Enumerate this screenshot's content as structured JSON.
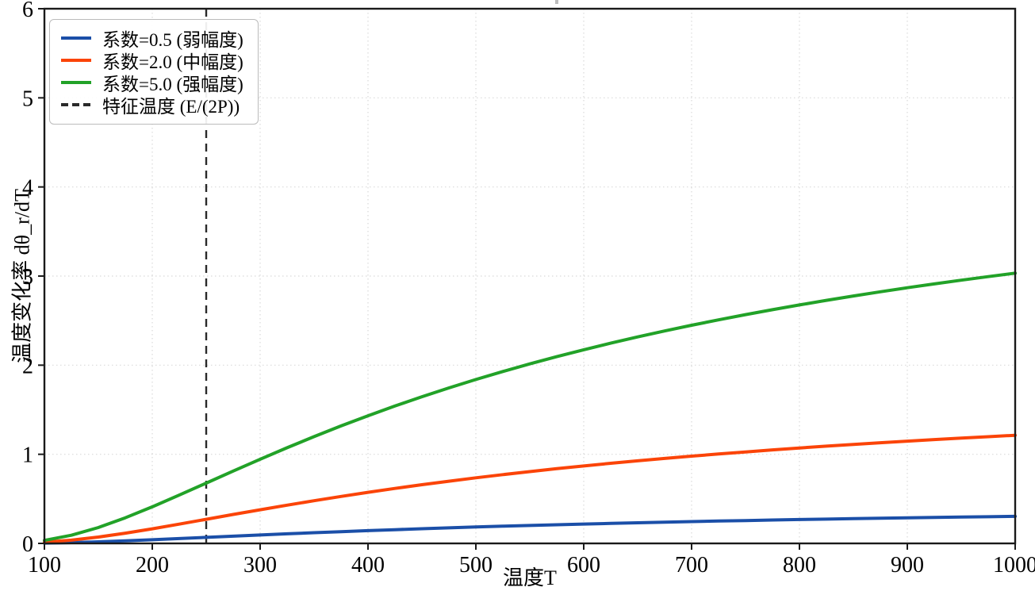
{
  "chart_data": {
    "type": "line",
    "title": "",
    "xlabel": "温度T",
    "ylabel": "温度变化率  dθ_r/dT",
    "xlim": [
      100,
      1000
    ],
    "ylim": [
      0,
      6
    ],
    "xticks": [
      100,
      200,
      300,
      400,
      500,
      600,
      700,
      800,
      900,
      1000
    ],
    "yticks": [
      0,
      1,
      2,
      3,
      4,
      5,
      6
    ],
    "grid": "dotted light-gray at every tick",
    "legend_position": "upper left",
    "background_color": "#ffffff",
    "x": [
      100,
      125,
      150,
      175,
      200,
      225,
      250,
      275,
      300,
      325,
      350,
      375,
      400,
      425,
      450,
      475,
      500,
      525,
      550,
      575,
      600,
      625,
      650,
      675,
      700,
      725,
      750,
      775,
      800,
      825,
      850,
      875,
      900,
      925,
      950,
      975,
      1000
    ],
    "series": [
      {
        "name": "系数=0.5 (弱幅度)",
        "color": "#1b4fa8",
        "values": [
          0.0034,
          0.0092,
          0.0178,
          0.0287,
          0.041,
          0.0542,
          0.0677,
          0.0812,
          0.0944,
          0.1074,
          0.1198,
          0.1318,
          0.1433,
          0.1542,
          0.1646,
          0.1745,
          0.1839,
          0.1929,
          0.2014,
          0.2096,
          0.2173,
          0.2247,
          0.2317,
          0.2384,
          0.2448,
          0.2509,
          0.2567,
          0.2623,
          0.2676,
          0.2727,
          0.2777,
          0.2824,
          0.2869,
          0.2912,
          0.2954,
          0.2994,
          0.3033
        ]
      },
      {
        "name": "系数=2.0 (中幅度)",
        "color": "#fb4408",
        "values": [
          0.0135,
          0.0366,
          0.0713,
          0.1149,
          0.1642,
          0.2167,
          0.2707,
          0.3246,
          0.3778,
          0.4294,
          0.4793,
          0.5272,
          0.573,
          0.6167,
          0.6584,
          0.698,
          0.7358,
          0.7716,
          0.8058,
          0.8383,
          0.8692,
          0.8987,
          0.9267,
          0.9535,
          0.9791,
          1.0035,
          1.0268,
          1.0492,
          1.0705,
          1.091,
          1.1106,
          1.1294,
          1.1475,
          1.1649,
          1.1816,
          1.1976,
          1.2131
        ]
      },
      {
        "name": "系数=5.0 (强幅度)",
        "color": "#22a228",
        "values": [
          0.0337,
          0.0916,
          0.1784,
          0.2872,
          0.4104,
          0.5418,
          0.6767,
          0.8116,
          0.9444,
          1.0736,
          1.1983,
          1.318,
          1.4325,
          1.5418,
          1.646,
          1.7451,
          1.8394,
          1.9291,
          2.0145,
          2.0957,
          2.173,
          2.2466,
          2.3168,
          2.3838,
          2.4477,
          2.5088,
          2.5671,
          2.6229,
          2.6763,
          2.7275,
          2.7765,
          2.8236,
          2.8688,
          2.9122,
          2.9539,
          2.994,
          3.0327
        ]
      }
    ],
    "vline": {
      "x": 250,
      "label": "特征温度 (E/(2P))",
      "color": "#2a2a2a",
      "style": "dashed"
    }
  }
}
